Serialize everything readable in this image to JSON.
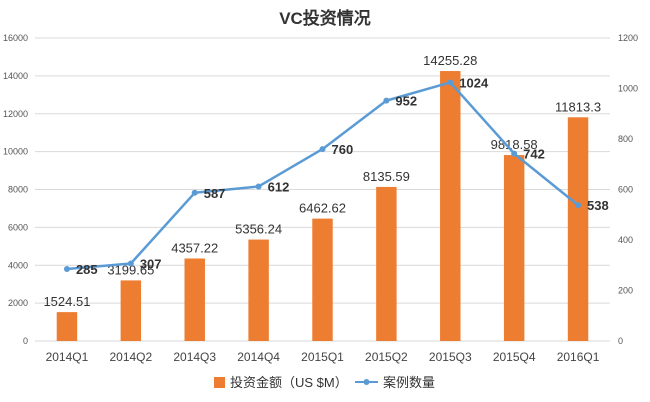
{
  "chart_data": {
    "type": "bar",
    "title": "VC投资情况",
    "categories": [
      "2014Q1",
      "2014Q2",
      "2014Q3",
      "2014Q4",
      "2015Q1",
      "2015Q2",
      "2015Q3",
      "2015Q4",
      "2016Q1"
    ],
    "series": [
      {
        "name": "投资金额（US $M）",
        "type": "bar",
        "axis": "left",
        "color": "#ED7D31",
        "values": [
          1524.51,
          3199.65,
          4357.22,
          5356.24,
          6462.62,
          8135.59,
          14255.28,
          9818.58,
          11813.3
        ],
        "labels": [
          "1524.51",
          "3199.65",
          "4357.22",
          "5356.24",
          "6462.62",
          "8135.59",
          "14255.28",
          "9818.58",
          "11813.3"
        ]
      },
      {
        "name": "案例数量",
        "type": "line",
        "axis": "right",
        "color": "#5B9BD5",
        "values": [
          285,
          307,
          587,
          612,
          760,
          952,
          1024,
          742,
          538
        ],
        "labels": [
          "285",
          "307",
          "587",
          "612",
          "760",
          "952",
          "1024",
          "742",
          "538"
        ]
      }
    ],
    "y_left": {
      "min": 0,
      "max": 16000,
      "step": 2000,
      "ticks": [
        "0",
        "2000",
        "4000",
        "6000",
        "8000",
        "10000",
        "12000",
        "14000",
        "16000"
      ]
    },
    "y_right": {
      "min": 0,
      "max": 1200,
      "step": 200,
      "ticks": [
        "0",
        "200",
        "400",
        "600",
        "800",
        "1000",
        "1200"
      ]
    },
    "grid": true,
    "legend_position": "bottom"
  }
}
